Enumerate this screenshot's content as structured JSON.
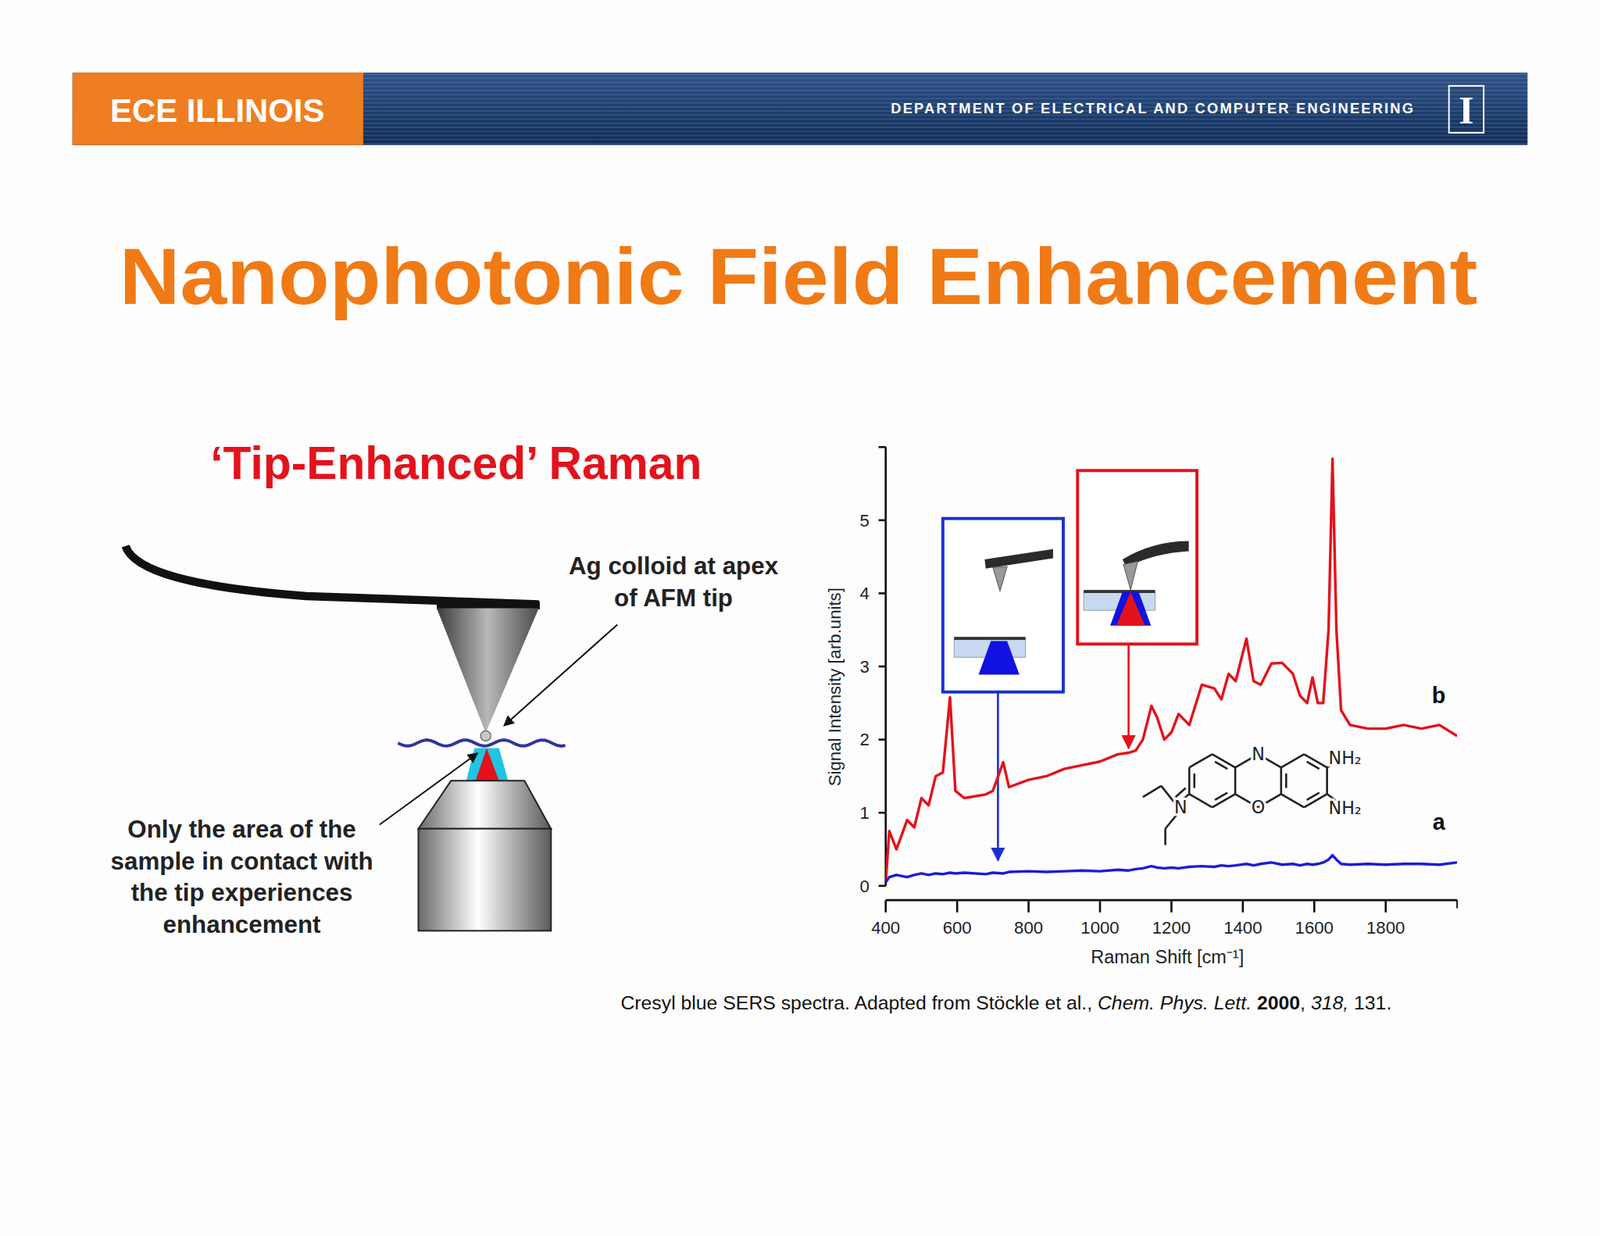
{
  "header": {
    "brand": "ECE ILLINOIS",
    "department": "DEPARTMENT OF ELECTRICAL AND COMPUTER ENGINEERING",
    "logo": "I"
  },
  "title": "Nanophotonic Field Enhancement",
  "diagram": {
    "title": "‘Tip-Enhanced’ Raman",
    "tip_label": [
      "Ag colloid at apex",
      "of AFM tip"
    ],
    "sample_label": [
      "Only the area of the",
      "sample in contact with",
      "the tip experiences",
      "enhancement"
    ]
  },
  "molecule": {
    "atoms": [
      "N",
      "O",
      "N",
      "NH₂",
      "NH₂"
    ]
  },
  "chart_data": {
    "type": "line",
    "x_label": "Raman Shift [cm⁻¹]",
    "y_label": "Signal Intensity [arb.units]",
    "x": [
      400,
      410,
      430,
      460,
      480,
      500,
      520,
      540,
      560,
      580,
      595,
      620,
      680,
      700,
      729,
      745,
      800,
      850,
      900,
      950,
      1000,
      1050,
      1080,
      1100,
      1120,
      1144,
      1160,
      1180,
      1200,
      1220,
      1250,
      1285,
      1320,
      1340,
      1360,
      1380,
      1410,
      1430,
      1450,
      1480,
      1510,
      1540,
      1560,
      1580,
      1595,
      1610,
      1625,
      1640,
      1651,
      1662,
      1675,
      1700,
      1750,
      1800,
      1850,
      1900,
      1950,
      2000
    ],
    "series": [
      {
        "name": "b",
        "color": "#e3121b",
        "values": [
          0.05,
          0.75,
          0.5,
          0.9,
          0.8,
          1.2,
          1.1,
          1.5,
          1.55,
          2.58,
          1.3,
          1.2,
          1.25,
          1.3,
          1.69,
          1.35,
          1.45,
          1.5,
          1.6,
          1.65,
          1.7,
          1.8,
          1.82,
          1.85,
          2.0,
          2.46,
          2.3,
          2.0,
          2.1,
          2.35,
          2.2,
          2.75,
          2.7,
          2.55,
          2.9,
          2.8,
          3.38,
          2.8,
          2.75,
          3.04,
          3.05,
          2.9,
          2.6,
          2.5,
          2.85,
          2.5,
          2.5,
          3.5,
          5.84,
          3.5,
          2.4,
          2.2,
          2.15,
          2.15,
          2.2,
          2.15,
          2.2,
          2.05
        ]
      },
      {
        "name": "a",
        "color": "#1c1cd6",
        "values": [
          0.05,
          0.12,
          0.15,
          0.12,
          0.15,
          0.17,
          0.15,
          0.17,
          0.16,
          0.18,
          0.17,
          0.18,
          0.16,
          0.18,
          0.17,
          0.19,
          0.2,
          0.19,
          0.2,
          0.21,
          0.2,
          0.22,
          0.21,
          0.23,
          0.24,
          0.27,
          0.25,
          0.24,
          0.25,
          0.24,
          0.26,
          0.27,
          0.26,
          0.28,
          0.27,
          0.28,
          0.3,
          0.28,
          0.3,
          0.32,
          0.29,
          0.3,
          0.28,
          0.3,
          0.29,
          0.3,
          0.32,
          0.36,
          0.42,
          0.36,
          0.3,
          0.29,
          0.3,
          0.29,
          0.3,
          0.3,
          0.29,
          0.32
        ]
      }
    ],
    "xlim": [
      400,
      2000
    ],
    "ylim": [
      0,
      6
    ],
    "xticks": [
      400,
      600,
      800,
      1000,
      1200,
      1400,
      1600,
      1800
    ],
    "yticks": [
      0,
      1,
      2,
      3,
      4,
      5
    ]
  },
  "caption": [
    {
      "text": "Cresyl blue SERS spectra. Adapted from Stöckle et al., ",
      "style": "normal"
    },
    {
      "text": "Chem. Phys. Lett. ",
      "style": "italic"
    },
    {
      "text": "2000",
      "style": "bold"
    },
    {
      "text": ", ",
      "style": "normal"
    },
    {
      "text": "318,",
      "style": "italic"
    },
    {
      "text": " 131.",
      "style": "normal"
    }
  ]
}
